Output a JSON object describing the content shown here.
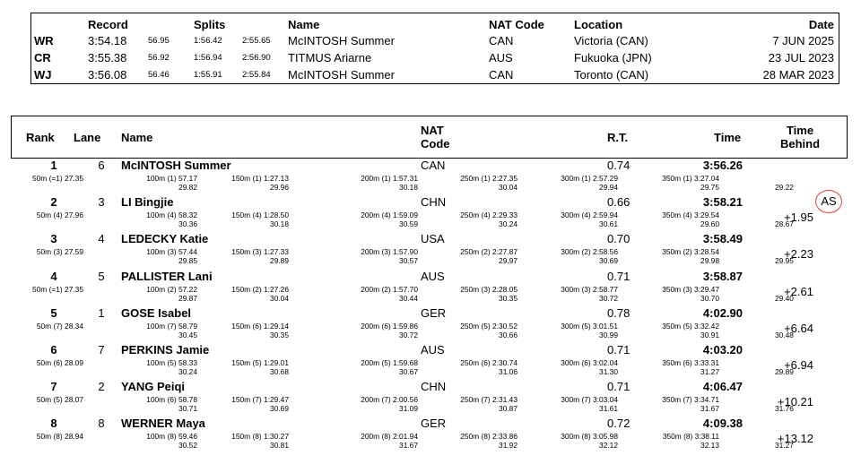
{
  "records": {
    "headers": {
      "record": "Record",
      "splits": "Splits",
      "name": "Name",
      "nat": "NAT Code",
      "location": "Location",
      "date": "Date"
    },
    "rows": [
      {
        "type": "WR",
        "time": "3:54.18",
        "s1": "56.95",
        "s2": "1:56.42",
        "s3": "2:55.65",
        "name": "McINTOSH Summer",
        "nat": "CAN",
        "location": "Victoria (CAN)",
        "date": "7 JUN 2025"
      },
      {
        "type": "CR",
        "time": "3:55.38",
        "s1": "56.92",
        "s2": "1:56.94",
        "s3": "2:56.90",
        "name": "TITMUS Ariarne",
        "nat": "AUS",
        "location": "Fukuoka (JPN)",
        "date": "23 JUL 2023"
      },
      {
        "type": "WJ",
        "time": "3:56.08",
        "s1": "56.46",
        "s2": "1:55.91",
        "s3": "2:55.84",
        "name": "McINTOSH Summer",
        "nat": "CAN",
        "location": "Toronto (CAN)",
        "date": "28 MAR 2023"
      }
    ]
  },
  "results": {
    "headers": {
      "rank": "Rank",
      "lane": "Lane",
      "name": "Name",
      "nat1": "NAT",
      "nat2": "Code",
      "rt": "R.T.",
      "time": "Time",
      "behind1": "Time",
      "behind2": "Behind"
    },
    "rows": [
      {
        "rank": "1",
        "lane": "6",
        "name": "McINTOSH Summer",
        "nat": "CAN",
        "rt": "0.74",
        "time": "3:56.26",
        "behind": "",
        "splits": [
          {
            "t": "50m (=1) 27.35",
            "d": ""
          },
          {
            "t": "100m (1) 57.17",
            "d": "29.82"
          },
          {
            "t": "150m (1) 1:27.13",
            "d": "29.96"
          },
          {
            "t": "200m (1) 1:57.31",
            "d": "30.18"
          },
          {
            "t": "250m (1) 2:27.35",
            "d": "30.04"
          },
          {
            "t": "300m (1) 2:57.29",
            "d": "29.94"
          },
          {
            "t": "350m (1) 3:27.04",
            "d": "29.75"
          },
          {
            "t": "",
            "d": "29.22"
          }
        ]
      },
      {
        "rank": "2",
        "lane": "3",
        "name": "LI Bingjie",
        "nat": "CHN",
        "rt": "0.66",
        "time": "3:58.21",
        "behind": "+1.95",
        "tag": "AS",
        "splits": [
          {
            "t": "50m (4) 27.96",
            "d": ""
          },
          {
            "t": "100m (4) 58.32",
            "d": "30.36"
          },
          {
            "t": "150m (4) 1:28.50",
            "d": "30.18"
          },
          {
            "t": "200m (4) 1:59.09",
            "d": "30.59"
          },
          {
            "t": "250m (4) 2:29.33",
            "d": "30.24"
          },
          {
            "t": "300m (4) 2:59.94",
            "d": "30.61"
          },
          {
            "t": "350m (4) 3:29.54",
            "d": "29.60"
          },
          {
            "t": "",
            "d": "28.67"
          }
        ]
      },
      {
        "rank": "3",
        "lane": "4",
        "name": "LEDECKY Katie",
        "nat": "USA",
        "rt": "0.70",
        "time": "3:58.49",
        "behind": "+2.23",
        "splits": [
          {
            "t": "50m (3) 27.59",
            "d": ""
          },
          {
            "t": "100m (3) 57.44",
            "d": "29.85"
          },
          {
            "t": "150m (3) 1:27.33",
            "d": "29.89"
          },
          {
            "t": "200m (3) 1:57.90",
            "d": "30.57"
          },
          {
            "t": "250m (2) 2:27.87",
            "d": "29.97"
          },
          {
            "t": "300m (2) 2:58.56",
            "d": "30.69"
          },
          {
            "t": "350m (2) 3:28.54",
            "d": "29.98"
          },
          {
            "t": "",
            "d": "29.95"
          }
        ]
      },
      {
        "rank": "4",
        "lane": "5",
        "name": "PALLISTER Lani",
        "nat": "AUS",
        "rt": "0.71",
        "time": "3:58.87",
        "behind": "+2.61",
        "splits": [
          {
            "t": "50m (=1) 27.35",
            "d": ""
          },
          {
            "t": "100m (2) 57.22",
            "d": "29.87"
          },
          {
            "t": "150m (2) 1:27.26",
            "d": "30.04"
          },
          {
            "t": "200m (2) 1:57.70",
            "d": "30.44"
          },
          {
            "t": "250m (3) 2:28.05",
            "d": "30.35"
          },
          {
            "t": "300m (3) 2:58.77",
            "d": "30.72"
          },
          {
            "t": "350m (3) 3:29.47",
            "d": "30.70"
          },
          {
            "t": "",
            "d": "29.40"
          }
        ]
      },
      {
        "rank": "5",
        "lane": "1",
        "name": "GOSE Isabel",
        "nat": "GER",
        "rt": "0.78",
        "time": "4:02.90",
        "behind": "+6.64",
        "splits": [
          {
            "t": "50m (7) 28.34",
            "d": ""
          },
          {
            "t": "100m (7) 58.79",
            "d": "30.45"
          },
          {
            "t": "150m (6) 1:29.14",
            "d": "30.35"
          },
          {
            "t": "200m (6) 1:59.86",
            "d": "30.72"
          },
          {
            "t": "250m (5) 2:30.52",
            "d": "30.66"
          },
          {
            "t": "300m (5) 3:01.51",
            "d": "30.99"
          },
          {
            "t": "350m (5) 3:32.42",
            "d": "30.91"
          },
          {
            "t": "",
            "d": "30.48"
          }
        ]
      },
      {
        "rank": "6",
        "lane": "7",
        "name": "PERKINS Jamie",
        "nat": "AUS",
        "rt": "0.71",
        "time": "4:03.20",
        "behind": "+6.94",
        "splits": [
          {
            "t": "50m (6) 28.09",
            "d": ""
          },
          {
            "t": "100m (5) 58.33",
            "d": "30.24"
          },
          {
            "t": "150m (5) 1:29.01",
            "d": "30.68"
          },
          {
            "t": "200m (5) 1:59.68",
            "d": "30.67"
          },
          {
            "t": "250m (6) 2:30.74",
            "d": "31.06"
          },
          {
            "t": "300m (6) 3:02.04",
            "d": "31.30"
          },
          {
            "t": "350m (6) 3:33.31",
            "d": "31.27"
          },
          {
            "t": "",
            "d": "29.89"
          }
        ]
      },
      {
        "rank": "7",
        "lane": "2",
        "name": "YANG Peiqi",
        "nat": "CHN",
        "rt": "0.71",
        "time": "4:06.47",
        "behind": "+10.21",
        "splits": [
          {
            "t": "50m (5) 28.07",
            "d": ""
          },
          {
            "t": "100m (6) 58.78",
            "d": "30.71"
          },
          {
            "t": "150m (7) 1:29.47",
            "d": "30.69"
          },
          {
            "t": "200m (7) 2:00.56",
            "d": "31.09"
          },
          {
            "t": "250m (7) 2:31.43",
            "d": "30.87"
          },
          {
            "t": "300m (7) 3:03.04",
            "d": "31.61"
          },
          {
            "t": "350m (7) 3:34.71",
            "d": "31.67"
          },
          {
            "t": "",
            "d": "31.76"
          }
        ]
      },
      {
        "rank": "8",
        "lane": "8",
        "name": "WERNER Maya",
        "nat": "GER",
        "rt": "0.72",
        "time": "4:09.38",
        "behind": "+13.12",
        "splits": [
          {
            "t": "50m (8) 28.94",
            "d": ""
          },
          {
            "t": "100m (8) 59.46",
            "d": "30.52"
          },
          {
            "t": "150m (8) 1:30.27",
            "d": "30.81"
          },
          {
            "t": "200m (8) 2:01.94",
            "d": "31.67"
          },
          {
            "t": "250m (8) 2:33.86",
            "d": "31.92"
          },
          {
            "t": "300m (8) 3:05.98",
            "d": "32.12"
          },
          {
            "t": "350m (8) 3:38.11",
            "d": "32.13"
          },
          {
            "t": "",
            "d": "31.27"
          }
        ]
      }
    ]
  },
  "colors": {
    "annotation_circle": "#e03a3a"
  }
}
